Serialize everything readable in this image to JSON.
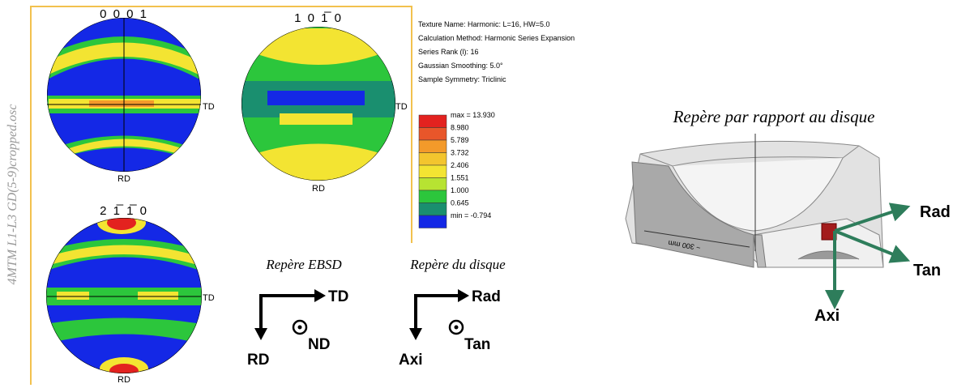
{
  "side_label": "4MTM L1-L3 GD(5-9)cropped.osc",
  "pole_figures": [
    {
      "label": "0 0 0 1",
      "td": "TD",
      "rd": "RD"
    },
    {
      "label": "1 0 1̅ 0",
      "td": "TD",
      "rd": "RD"
    },
    {
      "label": "2 1̅ 1̅ 0",
      "td": "TD",
      "rd": "RD"
    }
  ],
  "info": [
    "Texture Name: Harmonic: L=16, HW=5.0",
    "Calculation Method: Harmonic Series Expansion",
    "Series Rank (l): 16",
    "Gaussian Smoothing: 5.0°",
    "Sample Symmetry: Triclinic"
  ],
  "legend": [
    "max = 13.930",
    "8.980",
    "5.789",
    "3.732",
    "2.406",
    "1.551",
    "1.000",
    "0.645",
    "min = -0.794"
  ],
  "ebsd_frame": {
    "title": "Repère EBSD",
    "x": "TD",
    "y": "RD",
    "z": "ND"
  },
  "disk_frame": {
    "title": "Repère du disque",
    "x": "Rad",
    "y": "Axi",
    "z": "Tan"
  },
  "disk_figure": {
    "title": "Repère par rapport au disque",
    "dimension": "~ 300 mm",
    "rad": "Rad",
    "tan": "Tan",
    "axi": "Axi"
  }
}
